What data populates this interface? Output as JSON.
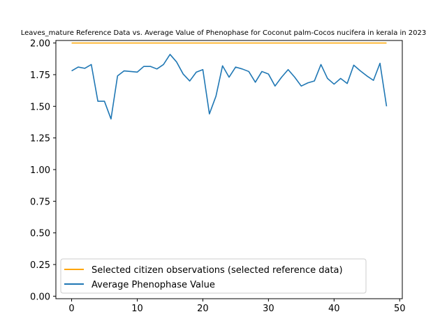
{
  "chart_data": {
    "type": "line",
    "title": "Leaves_mature Reference Data vs. Average Value of Phenophase for Coconut palm-Cocos nucifera in kerala in 2023",
    "xlabel": "",
    "ylabel": "",
    "xlim": [
      -2.4,
      50.4
    ],
    "ylim": [
      -0.02,
      2.02
    ],
    "x_ticks": [
      0,
      10,
      20,
      30,
      40,
      50
    ],
    "y_ticks": [
      0.0,
      0.25,
      0.5,
      0.75,
      1.0,
      1.25,
      1.5,
      1.75,
      2.0
    ],
    "grid": false,
    "legend_position": "lower-left",
    "series": [
      {
        "name": "Selected citizen observations (selected reference data)",
        "color": "#ffa500",
        "x": [
          0,
          48
        ],
        "y": [
          2.0,
          2.0
        ]
      },
      {
        "name": "Average Phenophase Value",
        "color": "#1f77b4",
        "x": [
          0,
          1,
          2,
          3,
          4,
          5,
          6,
          7,
          8,
          9,
          10,
          11,
          12,
          13,
          14,
          15,
          16,
          17,
          18,
          19,
          20,
          21,
          22,
          23,
          24,
          25,
          26,
          27,
          28,
          29,
          30,
          31,
          32,
          33,
          34,
          35,
          36,
          37,
          38,
          39,
          40,
          41,
          42,
          43,
          44,
          45,
          46,
          47,
          48
        ],
        "y": [
          1.78,
          1.81,
          1.8,
          1.83,
          1.54,
          1.54,
          1.4,
          1.74,
          1.78,
          1.775,
          1.77,
          1.815,
          1.815,
          1.795,
          1.83,
          1.91,
          1.85,
          1.755,
          1.7,
          1.77,
          1.79,
          1.44,
          1.58,
          1.82,
          1.73,
          1.81,
          1.795,
          1.775,
          1.69,
          1.775,
          1.755,
          1.66,
          1.73,
          1.79,
          1.73,
          1.66,
          1.685,
          1.7,
          1.83,
          1.72,
          1.675,
          1.72,
          1.68,
          1.825,
          1.78,
          1.74,
          1.705,
          1.84,
          1.5
        ]
      }
    ]
  }
}
